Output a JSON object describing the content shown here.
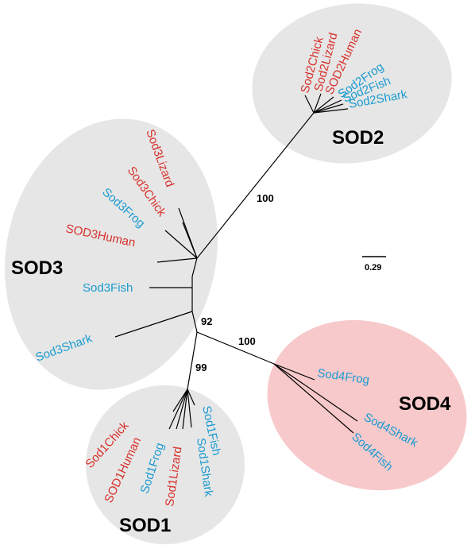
{
  "colors": {
    "mammal_like": "#d7302a",
    "fish_like": "#1a9bd0",
    "group_bg_gray": "#e6e6e6",
    "group_bg_pink": "#f7c9cb"
  },
  "groups": [
    {
      "id": "sod2",
      "label": "SOD2"
    },
    {
      "id": "sod3",
      "label": "SOD3"
    },
    {
      "id": "sod1",
      "label": "SOD1"
    },
    {
      "id": "sod4",
      "label": "SOD4"
    }
  ],
  "support_values": [
    "100",
    "92",
    "100",
    "99"
  ],
  "scale_bar": {
    "label": "0.29"
  },
  "leaves": {
    "sod2": [
      {
        "name": "Sod2Chick",
        "color": "#d7302a"
      },
      {
        "name": "Sod2Lizard",
        "color": "#d7302a"
      },
      {
        "name": "SOD2Human",
        "color": "#d7302a"
      },
      {
        "name": "Sod2Frog",
        "color": "#1a9bd0"
      },
      {
        "name": "Sod2Fish",
        "color": "#1a9bd0"
      },
      {
        "name": "Sod2Shark",
        "color": "#1a9bd0"
      }
    ],
    "sod3": [
      {
        "name": "Sod3Lizard",
        "color": "#d7302a"
      },
      {
        "name": "Sod3Chick",
        "color": "#d7302a"
      },
      {
        "name": "Sod3Frog",
        "color": "#1a9bd0"
      },
      {
        "name": "SOD3Human",
        "color": "#d7302a"
      },
      {
        "name": "Sod3Fish",
        "color": "#1a9bd0"
      },
      {
        "name": "Sod3Shark",
        "color": "#1a9bd0"
      }
    ],
    "sod1": [
      {
        "name": "Sod1Chick",
        "color": "#d7302a"
      },
      {
        "name": "SOD1Human",
        "color": "#d7302a"
      },
      {
        "name": "Sod1Frog",
        "color": "#1a9bd0"
      },
      {
        "name": "Sod1Lizard",
        "color": "#d7302a"
      },
      {
        "name": "Sod1Shark",
        "color": "#1a9bd0"
      },
      {
        "name": "Sod1Fish",
        "color": "#1a9bd0"
      }
    ],
    "sod4": [
      {
        "name": "Sod4Frog",
        "color": "#1a9bd0"
      },
      {
        "name": "Sod4Shark",
        "color": "#1a9bd0"
      },
      {
        "name": "Sod4Fish",
        "color": "#1a9bd0"
      }
    ]
  }
}
